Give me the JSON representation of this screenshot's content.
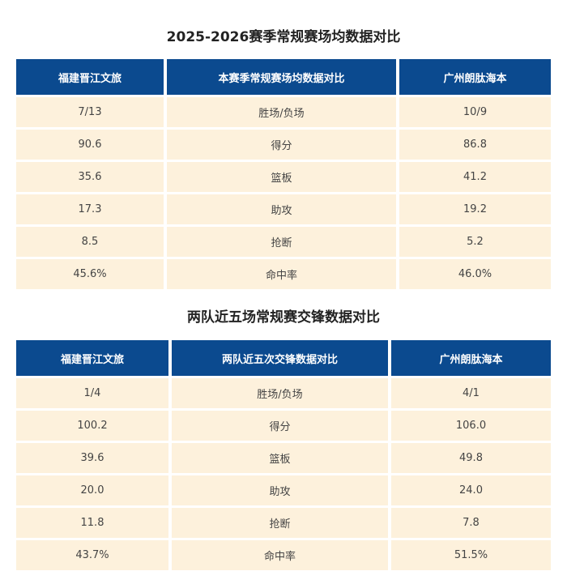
{
  "season_comparison": {
    "title": "2025-2026赛季常规赛场均数据对比",
    "headers": [
      "福建晋江文旅",
      "本赛季常规赛场均数据对比",
      "广州朗肽海本"
    ],
    "rows": [
      [
        "7/13",
        "胜场/负场",
        "10/9"
      ],
      [
        "90.6",
        "得分",
        "86.8"
      ],
      [
        "35.6",
        "篮板",
        "41.2"
      ],
      [
        "17.3",
        "助攻",
        "19.2"
      ],
      [
        "8.5",
        "抢断",
        "5.2"
      ],
      [
        "45.6%",
        "命中率",
        "46.0%"
      ]
    ]
  },
  "head_to_head": {
    "title": "两队近五场常规赛交锋数据对比",
    "headers": [
      "福建晋江文旅",
      "两队近五次交锋数据对比",
      "广州朗肽海本"
    ],
    "rows": [
      [
        "1/4",
        "胜场/负场",
        "4/1"
      ],
      [
        "100.2",
        "得分",
        "106.0"
      ],
      [
        "39.6",
        "篮板",
        "49.8"
      ],
      [
        "20.0",
        "助攻",
        "24.0"
      ],
      [
        "11.8",
        "抢断",
        "7.8"
      ],
      [
        "43.7%",
        "命中率",
        "51.5%"
      ]
    ]
  }
}
